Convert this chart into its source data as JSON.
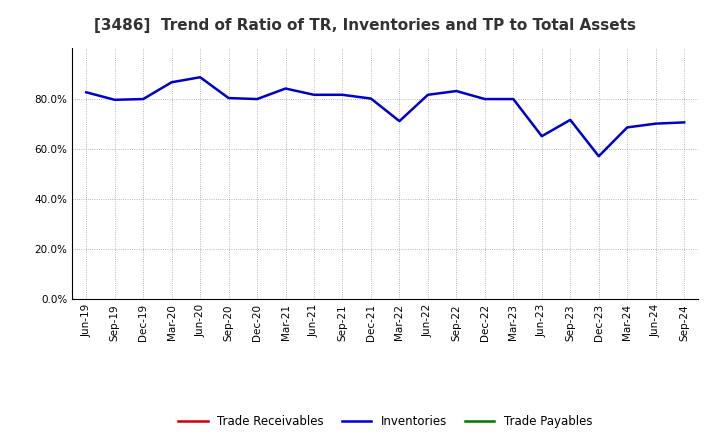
{
  "title": "[3486]  Trend of Ratio of TR, Inventories and TP to Total Assets",
  "x_labels": [
    "Jun-19",
    "Sep-19",
    "Dec-19",
    "Mar-20",
    "Jun-20",
    "Sep-20",
    "Dec-20",
    "Mar-21",
    "Jun-21",
    "Sep-21",
    "Dec-21",
    "Mar-22",
    "Jun-22",
    "Sep-22",
    "Dec-22",
    "Mar-23",
    "Jun-23",
    "Sep-23",
    "Dec-23",
    "Mar-24",
    "Jun-24",
    "Sep-24"
  ],
  "inventories": [
    82.5,
    79.5,
    79.8,
    86.5,
    88.5,
    80.2,
    79.8,
    84.0,
    81.5,
    81.5,
    80.0,
    71.0,
    81.5,
    83.0,
    79.8,
    79.8,
    65.0,
    71.5,
    57.0,
    68.5,
    70.0,
    70.5
  ],
  "ylim": [
    0,
    100
  ],
  "yticks": [
    0,
    20,
    40,
    60,
    80
  ],
  "ytick_labels": [
    "0.0%",
    "20.0%",
    "40.0%",
    "60.0%",
    "80.0%"
  ],
  "inv_color": "#0000cc",
  "tr_color": "#cc0000",
  "tp_color": "#007700",
  "line_width": 1.8,
  "background_color": "#ffffff",
  "grid_color": "#999999",
  "title_fontsize": 11,
  "tick_fontsize": 7.5,
  "legend_labels": [
    "Trade Receivables",
    "Inventories",
    "Trade Payables"
  ]
}
